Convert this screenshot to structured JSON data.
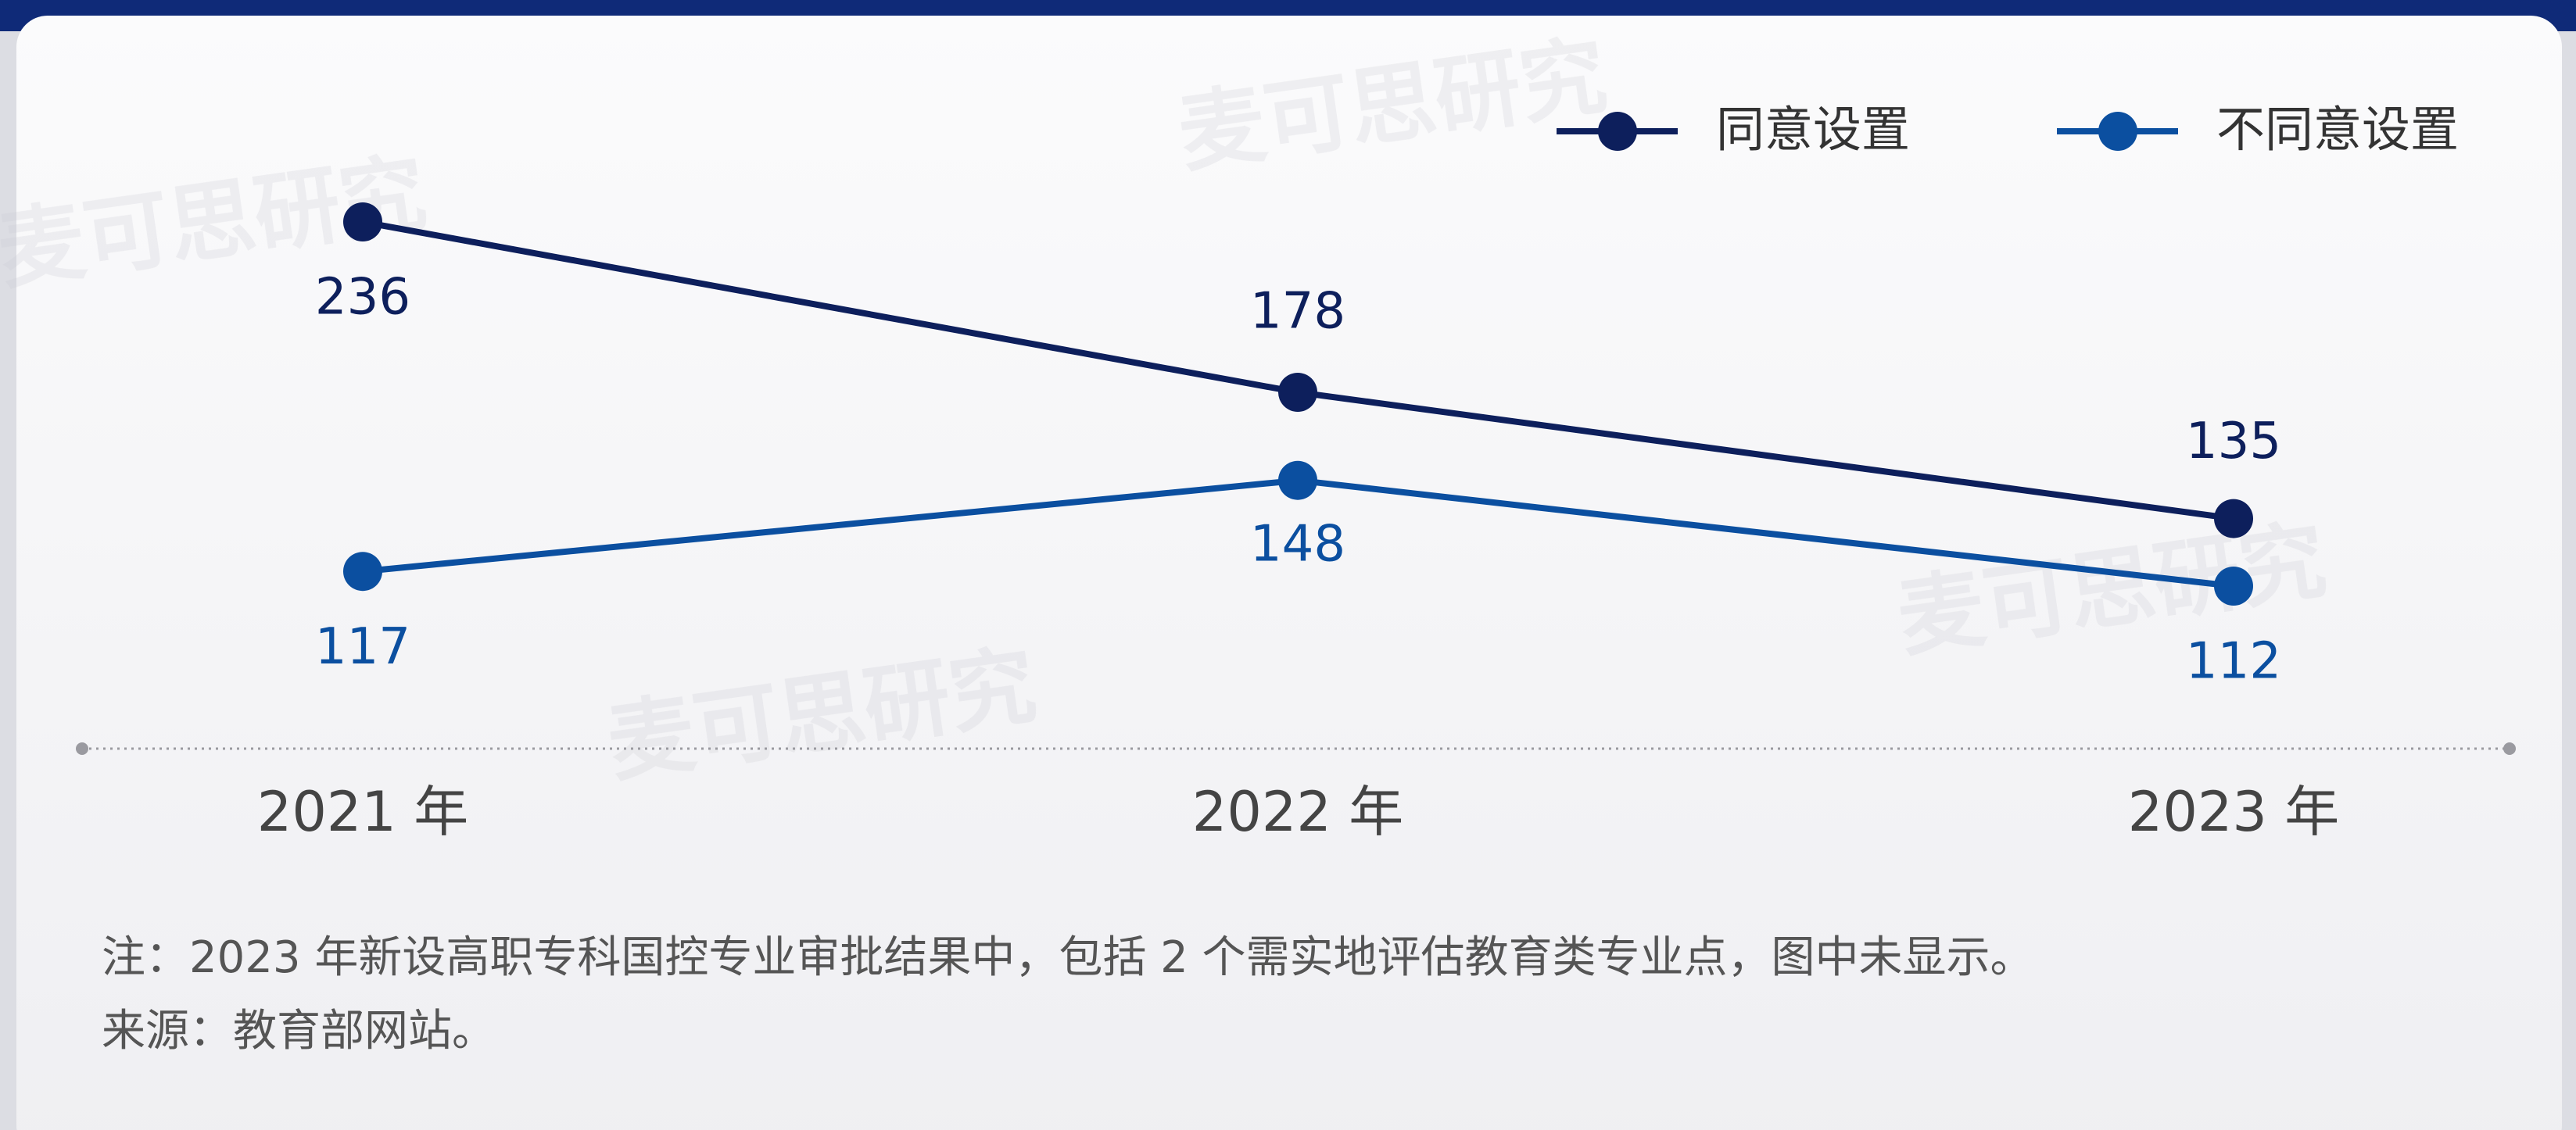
{
  "chart_data": {
    "type": "line",
    "categories": [
      "2021 年",
      "2022 年",
      "2023 年"
    ],
    "series": [
      {
        "name": "同意设置",
        "color": "#0d1f5c",
        "values": [
          236,
          178,
          135
        ]
      },
      {
        "name": "不同意设置",
        "color": "#0b4fa0",
        "values": [
          117,
          148,
          112
        ]
      }
    ],
    "legend": "top-right",
    "notes": [
      "注：2023 年新设高职专科国控专业审批结果中，包括 2 个需实地评估教育类专业点，图中未显示。",
      "来源：教育部网站。"
    ],
    "watermark": "麦可思研究"
  }
}
